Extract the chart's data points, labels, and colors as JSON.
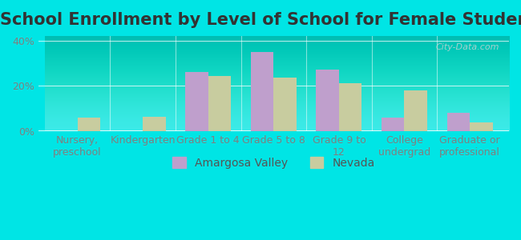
{
  "title": "School Enrollment by Level of School for Female Students",
  "categories": [
    "Nursery,\npreschool",
    "Kindergarten",
    "Grade 1 to 4",
    "Grade 5 to 8",
    "Grade 9 to\n12",
    "College\nundergrad",
    "Graduate or\nprofessional"
  ],
  "amargosa_values": [
    0,
    0,
    26,
    35,
    27,
    6,
    8
  ],
  "nevada_values": [
    6,
    6.5,
    24.5,
    23.5,
    21,
    18,
    4
  ],
  "amargosa_color": "#bf9fcc",
  "nevada_color": "#c8cc9f",
  "background_color": "#00e5e5",
  "plot_bg_color_top": "#e8f5e9",
  "plot_bg_color_bottom": "#f5ffe8",
  "ylabel_ticks": [
    "0%",
    "20%",
    "40%"
  ],
  "yticks": [
    0,
    20,
    40
  ],
  "ylim": [
    0,
    42
  ],
  "legend_labels": [
    "Amargosa Valley",
    "Nevada"
  ],
  "title_fontsize": 15,
  "tick_fontsize": 9,
  "legend_fontsize": 10,
  "watermark": "City-Data.com"
}
